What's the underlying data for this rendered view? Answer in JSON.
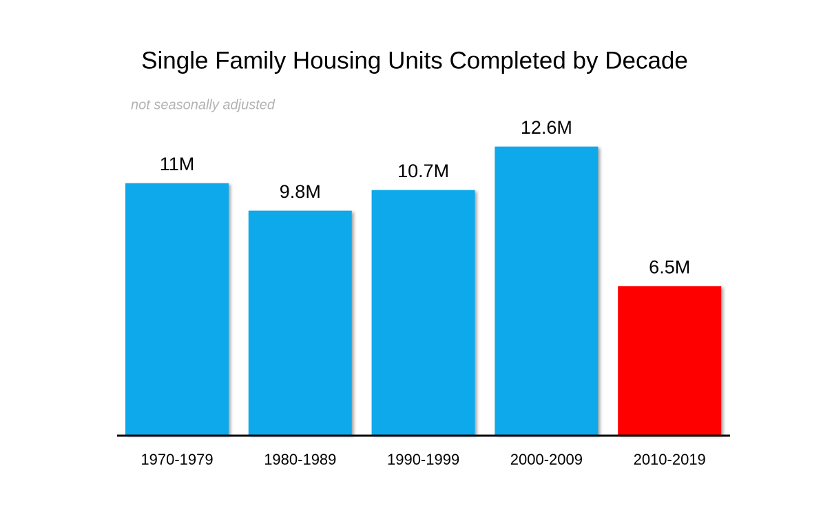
{
  "chart_data": {
    "type": "bar",
    "title": "Single Family Housing Units Completed by Decade",
    "subtitle": "not seasonally adjusted",
    "categories": [
      "1970-1979",
      "1980-1989",
      "1990-1999",
      "2000-2009",
      "2010-2019"
    ],
    "values": [
      11,
      9.8,
      10.7,
      12.6,
      6.5
    ],
    "value_labels": [
      "11M",
      "9.8M",
      "10.7M",
      "12.6M",
      "6.5M"
    ],
    "colors": [
      "#0fa9ea",
      "#0fa9ea",
      "#0fa9ea",
      "#0fa9ea",
      "#ff0000"
    ]
  }
}
